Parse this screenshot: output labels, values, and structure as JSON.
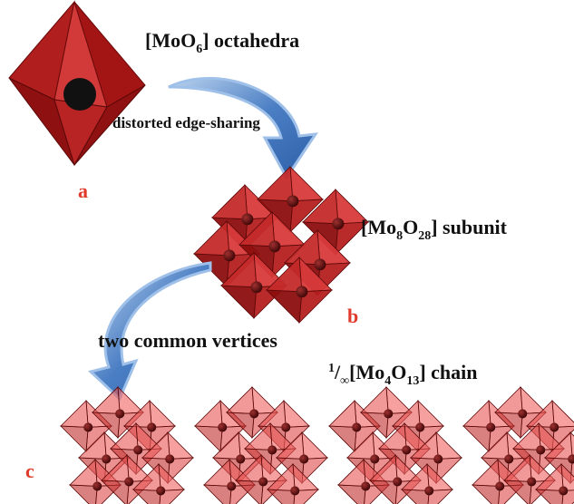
{
  "octahedron": {
    "title": {
      "parts": [
        "[MoO",
        "6",
        "] octahedra"
      ]
    },
    "label": "a"
  },
  "arrow_1": {
    "label": "distorted edge-sharing"
  },
  "subunit": {
    "title": {
      "parts": [
        "[Mo",
        "8",
        "O",
        "28",
        "] subunit"
      ]
    },
    "label": "b"
  },
  "arrow_2": {
    "label": "two common vertices"
  },
  "chain": {
    "title": {
      "parts": [
        "1",
        "/",
        "∞",
        "[Mo",
        "4",
        "O",
        "13",
        "] chain"
      ]
    },
    "label": "c"
  }
}
